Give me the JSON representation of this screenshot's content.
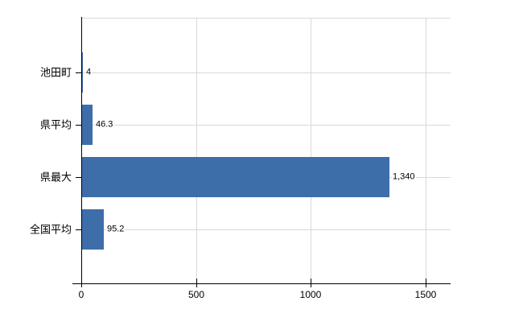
{
  "chart_data": {
    "type": "bar",
    "orientation": "horizontal",
    "title": "",
    "categories": [
      "池田町",
      "県平均",
      "県最大",
      "全国平均"
    ],
    "values": [
      4,
      46.3,
      1340,
      95.2
    ],
    "value_labels": [
      "4",
      "46.3",
      "1,340",
      "95.2"
    ],
    "x_ticks": [
      0,
      500,
      1000,
      1500
    ],
    "x_tick_labels": [
      "0",
      "500",
      "1000",
      "1500"
    ],
    "xlim": [
      0,
      1610
    ],
    "grid": true,
    "legend": false,
    "colors": {
      "bar": "#3E6EA9",
      "gridline": "#D9D9D9",
      "axis": "#000000",
      "text": "#000000",
      "background": "#FFFFFF"
    }
  }
}
